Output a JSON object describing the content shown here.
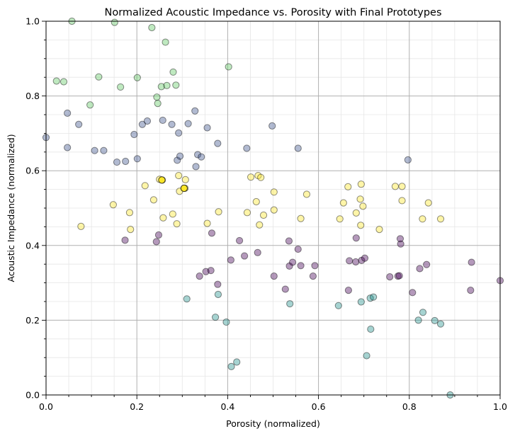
{
  "chart_data": {
    "type": "scatter",
    "title": "Normalized Acoustic Impedance vs. Porosity with Final Prototypes",
    "xlabel": "Porosity (normalized)",
    "ylabel": "Acoustic Impedance (normalized)",
    "xlim": [
      0,
      1
    ],
    "ylim": [
      0,
      1
    ],
    "xticks": [
      "0.0",
      "0.2",
      "0.4",
      "0.6",
      "0.8",
      "1.0"
    ],
    "yticks": [
      "0.0",
      "0.2",
      "0.4",
      "0.6",
      "0.8",
      "1.0"
    ],
    "grid": "major and minor",
    "series": [
      {
        "color": "#440154",
        "points": [
          [
            0.174,
            0.414
          ],
          [
            0.248,
            0.428
          ],
          [
            0.243,
            0.41
          ],
          [
            0.338,
            0.318
          ],
          [
            0.352,
            0.33
          ],
          [
            0.363,
            0.333
          ],
          [
            0.365,
            0.433
          ],
          [
            0.378,
            0.296
          ],
          [
            0.407,
            0.361
          ],
          [
            0.426,
            0.413
          ],
          [
            0.437,
            0.372
          ],
          [
            0.466,
            0.381
          ],
          [
            0.502,
            0.318
          ],
          [
            0.527,
            0.283
          ],
          [
            0.536,
            0.345
          ],
          [
            0.535,
            0.412
          ],
          [
            0.543,
            0.355
          ],
          [
            0.555,
            0.39
          ],
          [
            0.561,
            0.346
          ],
          [
            0.588,
            0.318
          ],
          [
            0.592,
            0.346
          ],
          [
            0.666,
            0.28
          ],
          [
            0.668,
            0.359
          ],
          [
            0.682,
            0.356
          ],
          [
            0.683,
            0.42
          ],
          [
            0.695,
            0.36
          ],
          [
            0.702,
            0.366
          ],
          [
            0.757,
            0.316
          ],
          [
            0.775,
            0.318
          ],
          [
            0.778,
            0.319
          ],
          [
            0.781,
            0.404
          ],
          [
            0.78,
            0.418
          ],
          [
            0.807,
            0.274
          ],
          [
            0.823,
            0.338
          ],
          [
            0.838,
            0.349
          ],
          [
            0.935,
            0.28
          ],
          [
            0.937,
            0.355
          ],
          [
            1.0,
            0.306
          ]
        ]
      },
      {
        "color": "#3b528b",
        "points": [
          [
            0.0,
            0.689
          ],
          [
            0.047,
            0.754
          ],
          [
            0.047,
            0.662
          ],
          [
            0.072,
            0.724
          ],
          [
            0.107,
            0.654
          ],
          [
            0.127,
            0.654
          ],
          [
            0.156,
            0.623
          ],
          [
            0.175,
            0.625
          ],
          [
            0.194,
            0.697
          ],
          [
            0.201,
            0.632
          ],
          [
            0.212,
            0.724
          ],
          [
            0.223,
            0.733
          ],
          [
            0.257,
            0.735
          ],
          [
            0.277,
            0.724
          ],
          [
            0.289,
            0.628
          ],
          [
            0.292,
            0.701
          ],
          [
            0.295,
            0.639
          ],
          [
            0.313,
            0.726
          ],
          [
            0.328,
            0.76
          ],
          [
            0.33,
            0.611
          ],
          [
            0.334,
            0.643
          ],
          [
            0.342,
            0.637
          ],
          [
            0.355,
            0.715
          ],
          [
            0.378,
            0.673
          ],
          [
            0.442,
            0.66
          ],
          [
            0.498,
            0.72
          ],
          [
            0.555,
            0.66
          ],
          [
            0.797,
            0.629
          ]
        ]
      },
      {
        "color": "#21908d",
        "points": [
          [
            0.31,
            0.257
          ],
          [
            0.373,
            0.208
          ],
          [
            0.379,
            0.269
          ],
          [
            0.397,
            0.195
          ],
          [
            0.408,
            0.076
          ],
          [
            0.42,
            0.088
          ],
          [
            0.537,
            0.244
          ],
          [
            0.644,
            0.239
          ],
          [
            0.694,
            0.249
          ],
          [
            0.706,
            0.105
          ],
          [
            0.714,
            0.259
          ],
          [
            0.715,
            0.176
          ],
          [
            0.721,
            0.262
          ],
          [
            0.82,
            0.2
          ],
          [
            0.83,
            0.221
          ],
          [
            0.856,
            0.199
          ],
          [
            0.869,
            0.19
          ],
          [
            0.89,
            0.0
          ]
        ]
      },
      {
        "color": "#5ec962",
        "points": [
          [
            0.023,
            0.84
          ],
          [
            0.039,
            0.838
          ],
          [
            0.057,
            1.0
          ],
          [
            0.097,
            0.776
          ],
          [
            0.116,
            0.851
          ],
          [
            0.151,
            0.997
          ],
          [
            0.164,
            0.824
          ],
          [
            0.201,
            0.849
          ],
          [
            0.233,
            0.983
          ],
          [
            0.244,
            0.797
          ],
          [
            0.246,
            0.78
          ],
          [
            0.254,
            0.825
          ],
          [
            0.263,
            0.944
          ],
          [
            0.266,
            0.828
          ],
          [
            0.28,
            0.864
          ],
          [
            0.286,
            0.829
          ],
          [
            0.402,
            0.878
          ]
        ]
      },
      {
        "color": "#fde725",
        "points": [
          [
            0.077,
            0.451
          ],
          [
            0.148,
            0.509
          ],
          [
            0.184,
            0.488
          ],
          [
            0.186,
            0.443
          ],
          [
            0.218,
            0.56
          ],
          [
            0.237,
            0.522
          ],
          [
            0.25,
            0.577
          ],
          [
            0.256,
            0.575
          ],
          [
            0.258,
            0.474
          ],
          [
            0.279,
            0.484
          ],
          [
            0.288,
            0.458
          ],
          [
            0.292,
            0.587
          ],
          [
            0.294,
            0.545
          ],
          [
            0.304,
            0.553
          ],
          [
            0.307,
            0.576
          ],
          [
            0.306,
            0.553
          ],
          [
            0.355,
            0.459
          ],
          [
            0.38,
            0.49
          ],
          [
            0.443,
            0.488
          ],
          [
            0.451,
            0.583
          ],
          [
            0.463,
            0.517
          ],
          [
            0.467,
            0.587
          ],
          [
            0.47,
            0.455
          ],
          [
            0.473,
            0.582
          ],
          [
            0.479,
            0.481
          ],
          [
            0.502,
            0.495
          ],
          [
            0.502,
            0.543
          ],
          [
            0.561,
            0.472
          ],
          [
            0.574,
            0.537
          ],
          [
            0.647,
            0.471
          ],
          [
            0.655,
            0.514
          ],
          [
            0.665,
            0.557
          ],
          [
            0.683,
            0.487
          ],
          [
            0.692,
            0.524
          ],
          [
            0.693,
            0.454
          ],
          [
            0.694,
            0.564
          ],
          [
            0.698,
            0.505
          ],
          [
            0.734,
            0.443
          ],
          [
            0.769,
            0.558
          ],
          [
            0.784,
            0.52
          ],
          [
            0.784,
            0.558
          ],
          [
            0.829,
            0.471
          ],
          [
            0.842,
            0.514
          ],
          [
            0.869,
            0.471
          ]
        ]
      }
    ],
    "highlighted_points": [
      {
        "x": 0.255,
        "y": 0.575,
        "color": "#fde725"
      },
      {
        "x": 0.304,
        "y": 0.553,
        "color": "#fde725"
      }
    ]
  }
}
